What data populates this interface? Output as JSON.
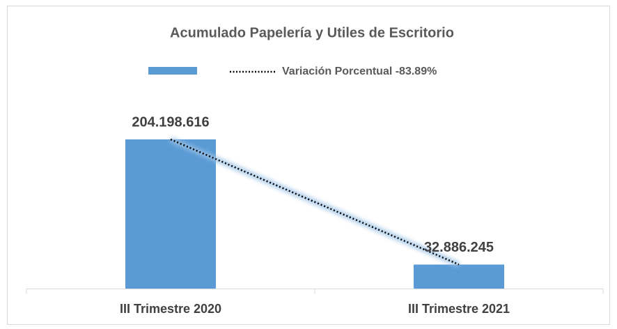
{
  "chart_data": {
    "type": "bar",
    "title": "Acumulado Papelería y Utiles de Escritorio",
    "categories": [
      "III Trimestre 2020",
      "III Trimestre 2021"
    ],
    "series": [
      {
        "color": "#5b9bd5",
        "values": [
          204198616,
          32886245
        ],
        "value_labels": [
          "204.198.616",
          "32.886.245"
        ]
      }
    ],
    "trendline": {
      "name": "Variación Porcentual -83.89%",
      "style": "dotted",
      "color": "#000000"
    },
    "legend": "top"
  }
}
